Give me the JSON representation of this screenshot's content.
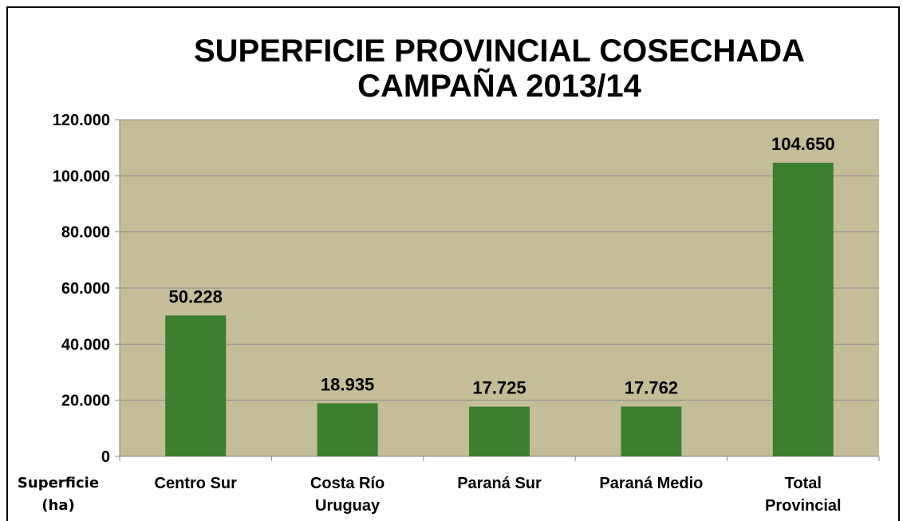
{
  "chart_data": {
    "type": "bar",
    "title": "SUPERFICIE PROVINCIAL COSECHADA\nCAMPAÑA 2013/14",
    "x_label": "Superficie\n(ha)",
    "categories": [
      "Centro Sur",
      "Costa Río\nUruguay",
      "Paraná Sur",
      "Paraná Medio",
      "Total\nProvincial"
    ],
    "values": [
      50228,
      18935,
      17725,
      17762,
      104650
    ],
    "value_labels": [
      "50.228",
      "18.935",
      "17.725",
      "17.762",
      "104.650"
    ],
    "color": "#3b7f2f",
    "plot_background": "#c4bd97",
    "ylim": [
      0,
      120000
    ],
    "yticks": [
      {
        "value": 0,
        "label": "0"
      },
      {
        "value": 20000,
        "label": "20.000"
      },
      {
        "value": 40000,
        "label": "40.000"
      },
      {
        "value": 60000,
        "label": "60.000"
      },
      {
        "value": 80000,
        "label": "80.000"
      },
      {
        "value": 100000,
        "label": "100.000"
      },
      {
        "value": 120000,
        "label": "120.000"
      }
    ],
    "grid": true
  }
}
